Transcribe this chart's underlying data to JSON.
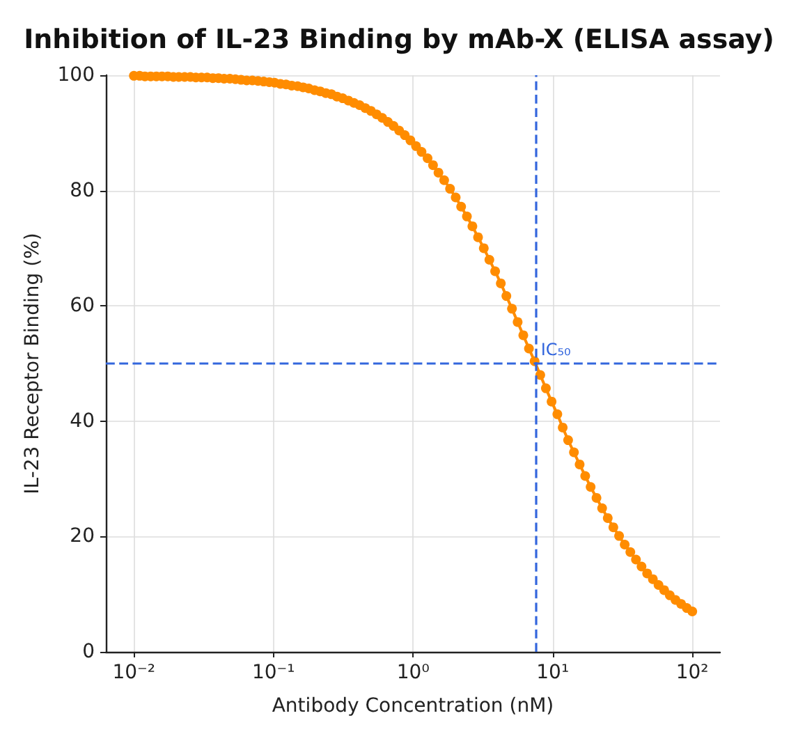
{
  "chart_data": {
    "type": "line",
    "title": "Inhibition of IL-23 Binding by mAb-X (ELISA assay)",
    "xlabel": "Antibody Concentration (nM)",
    "ylabel": "IL-23 Receptor Binding (%)",
    "x": [
      0.01,
      0.011,
      0.012,
      0.0132,
      0.0145,
      0.0159,
      0.0175,
      0.0192,
      0.021,
      0.0231,
      0.0254,
      0.0278,
      0.0305,
      0.0335,
      0.0368,
      0.0404,
      0.0443,
      0.0487,
      0.0534,
      0.0586,
      0.0643,
      0.0706,
      0.0775,
      0.0851,
      0.0934,
      0.102,
      0.112,
      0.123,
      0.135,
      0.149,
      0.163,
      0.179,
      0.197,
      0.216,
      0.237,
      0.26,
      0.285,
      0.313,
      0.344,
      0.377,
      0.414,
      0.455,
      0.499,
      0.548,
      0.601,
      0.66,
      0.724,
      0.795,
      0.872,
      0.957,
      1.05,
      1.15,
      1.27,
      1.39,
      1.52,
      1.67,
      1.84,
      2.02,
      2.21,
      2.43,
      2.66,
      2.92,
      3.21,
      3.52,
      3.87,
      4.25,
      4.66,
      5.11,
      5.61,
      6.16,
      6.76,
      7.42,
      8.15,
      8.94,
      9.82,
      10.8,
      11.8,
      12.9,
      14.2,
      15.6,
      17.1,
      18.7,
      20.6,
      22.6,
      24.8,
      27.2,
      29.9,
      32.8,
      36,
      39.5,
      43.3,
      47.5,
      52.2,
      57.3,
      62.9,
      69,
      75.8,
      83.2,
      91.3,
      100
    ],
    "series": [
      {
        "color": "#ff8c00",
        "values": [
          99.9,
          99.9,
          99.8,
          99.8,
          99.8,
          99.8,
          99.8,
          99.7,
          99.7,
          99.7,
          99.7,
          99.6,
          99.6,
          99.6,
          99.5,
          99.5,
          99.4,
          99.4,
          99.3,
          99.2,
          99.1,
          99.1,
          99,
          98.9,
          98.8,
          98.7,
          98.5,
          98.4,
          98.2,
          98.1,
          97.9,
          97.7,
          97.4,
          97.2,
          96.9,
          96.7,
          96.3,
          96,
          95.6,
          95.2,
          94.8,
          94.3,
          93.8,
          93.2,
          92.6,
          91.9,
          91.2,
          90.4,
          89.6,
          88.7,
          87.7,
          86.7,
          85.6,
          84.4,
          83.1,
          81.8,
          80.3,
          78.8,
          77.2,
          75.5,
          73.8,
          71.9,
          70,
          68,
          66,
          63.9,
          61.7,
          59.5,
          57.2,
          54.9,
          52.6,
          50.4,
          48,
          45.7,
          43.4,
          41.2,
          38.9,
          36.7,
          34.6,
          32.5,
          30.5,
          28.6,
          26.7,
          24.9,
          23.2,
          21.6,
          20.1,
          18.6,
          17.3,
          16,
          14.8,
          13.6,
          12.6,
          11.6,
          10.7,
          9.8,
          9,
          8.3,
          7.6,
          7
        ]
      }
    ],
    "marker": "circle",
    "line_style": "solid",
    "log": "x",
    "xlim": [
      0.0063,
      158
    ],
    "xticks": [
      {
        "value": 0.01,
        "label": "10⁻²"
      },
      {
        "value": 0.1,
        "label": "10⁻¹"
      },
      {
        "value": 1,
        "label": "10⁰"
      },
      {
        "value": 10,
        "label": "10¹"
      },
      {
        "value": 100,
        "label": "10²"
      }
    ],
    "ylim": [
      0,
      100
    ],
    "yticks": [
      0,
      20,
      40,
      60,
      80,
      100
    ],
    "grid": true,
    "ref_lines": [
      {
        "axis": "x",
        "value": 7.5,
        "label": "IC₅₀",
        "color": "#3366dd",
        "line_style": "dashed"
      },
      {
        "axis": "y",
        "value": 50,
        "label": null,
        "color": "#3366dd",
        "line_style": "dashed"
      }
    ]
  }
}
